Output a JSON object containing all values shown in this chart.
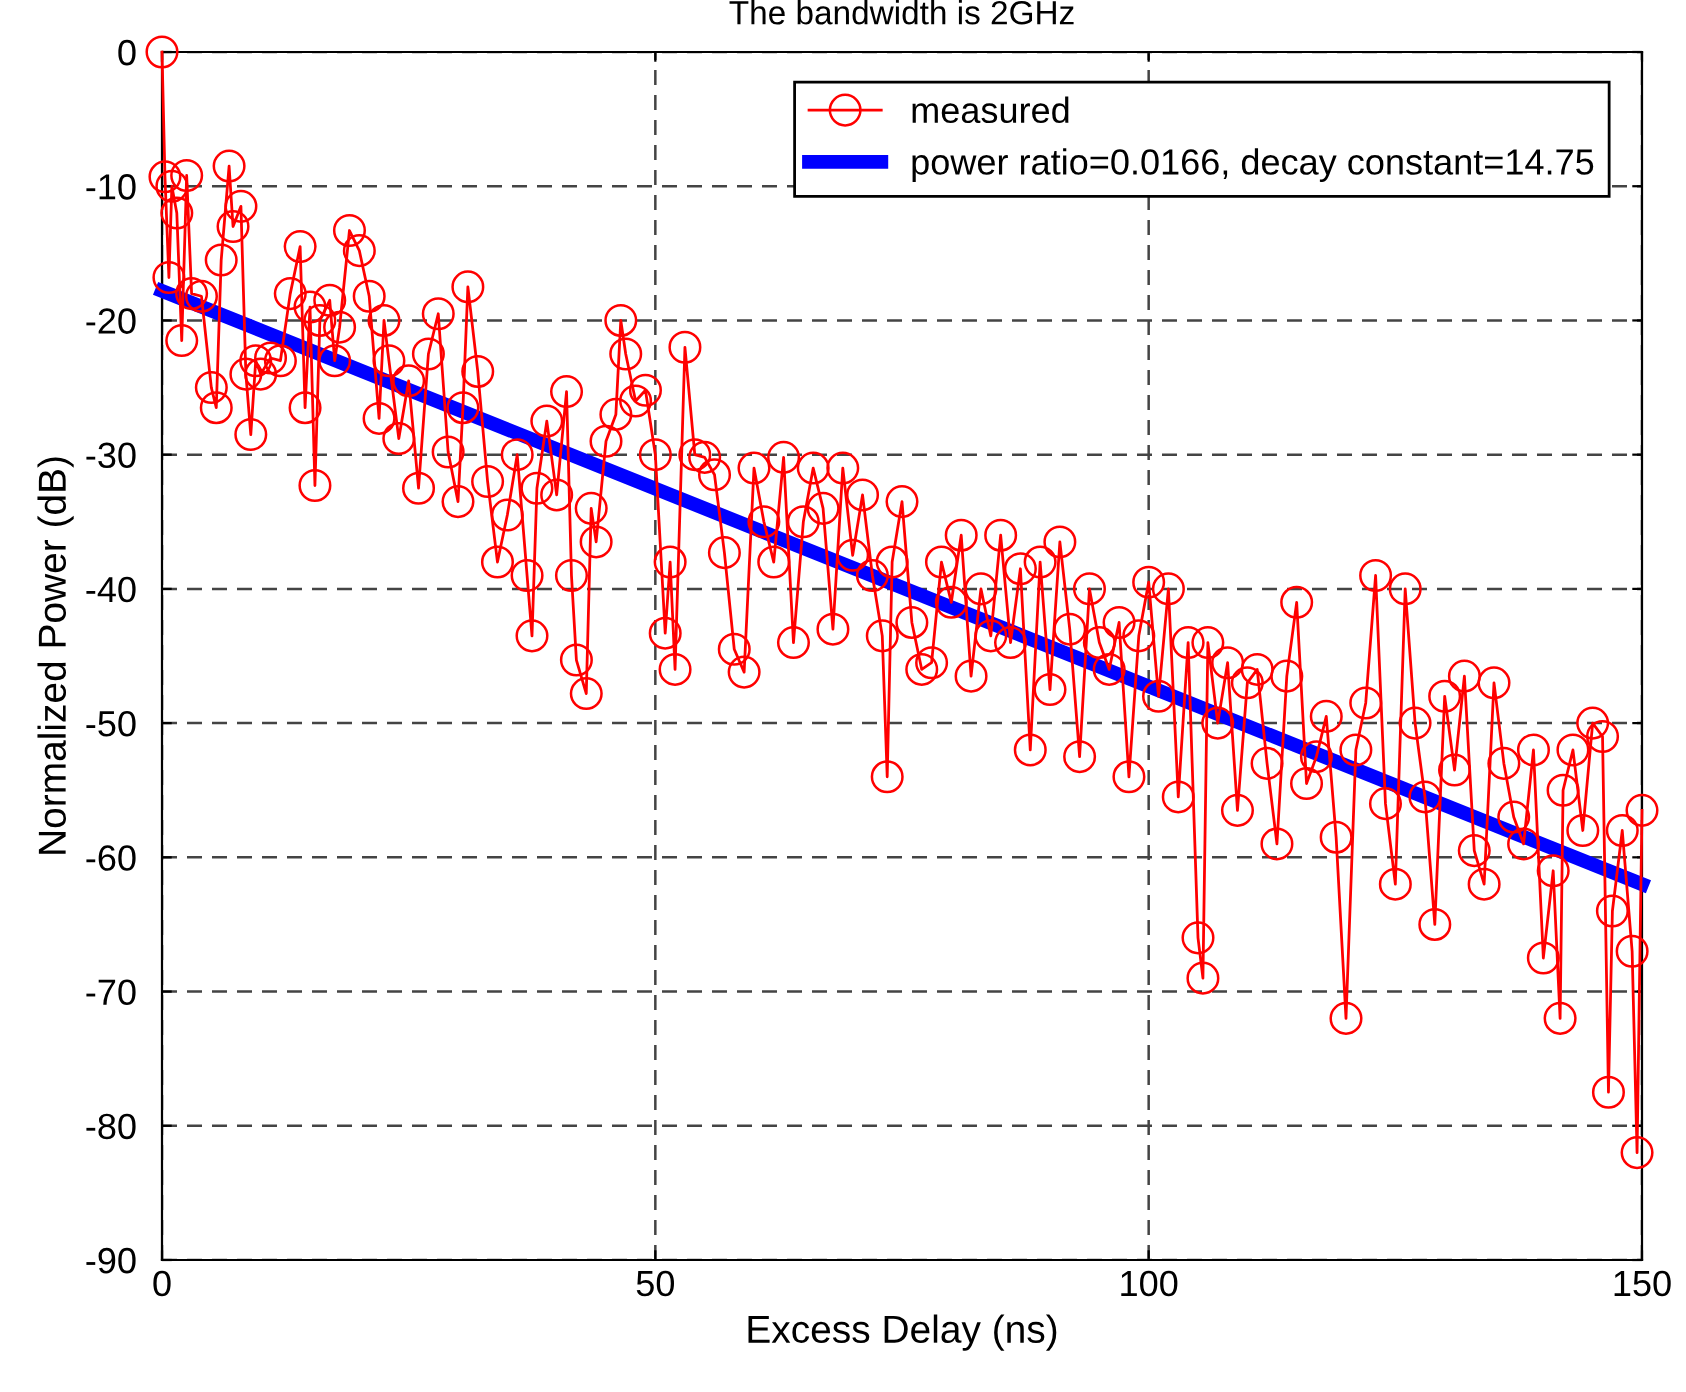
{
  "chart_data": {
    "type": "line",
    "title": "The bandwidth is 2GHz",
    "xlabel": "Excess Delay (ns)",
    "ylabel": "Normalized Power (dB)",
    "xlim": [
      0,
      150
    ],
    "ylim": [
      -90,
      0
    ],
    "xticks": [
      0,
      50,
      100,
      150
    ],
    "yticks": [
      -90,
      -80,
      -70,
      -60,
      -50,
      -40,
      -30,
      -20,
      -10,
      0
    ],
    "grid": true,
    "legend": "top right",
    "series": [
      {
        "name": "measured",
        "color": "#ff0000",
        "marker": "circle",
        "line_style": "solid",
        "x": [
          0,
          0.3,
          0.7,
          1,
          1.5,
          2,
          2.5,
          3,
          4,
          5,
          5.5,
          6,
          6.8,
          7.2,
          8,
          8.5,
          9,
          9.5,
          10,
          11,
          12,
          13,
          14,
          14.5,
          15,
          15.5,
          16,
          17,
          17.5,
          18,
          19,
          20,
          21,
          22,
          22.5,
          23,
          24,
          25,
          26,
          27,
          28,
          29,
          30,
          30.5,
          31,
          32,
          33,
          34,
          35,
          36,
          37,
          37.5,
          38,
          39,
          40,
          41,
          41.5,
          42,
          43,
          43.5,
          44,
          45,
          46,
          46.5,
          47,
          48,
          49,
          50,
          51,
          51.5,
          52,
          53,
          54,
          55,
          56,
          57,
          58,
          59,
          60,
          61,
          62,
          63,
          64,
          65,
          66,
          67,
          68,
          69,
          70,
          71,
          72,
          73,
          73.5,
          74,
          75,
          76,
          77,
          78,
          79,
          80,
          81,
          82,
          83,
          84,
          85,
          86,
          87,
          88,
          89,
          90,
          91,
          92,
          93,
          94,
          95,
          96,
          97,
          98,
          99,
          100,
          101,
          102,
          103,
          104,
          105,
          105.5,
          106,
          107,
          108,
          109,
          110,
          111,
          112,
          113,
          114,
          115,
          116,
          117,
          118,
          119,
          120,
          121,
          122,
          123,
          124,
          125,
          126,
          127,
          128,
          129,
          130,
          131,
          132,
          133,
          134,
          135,
          136,
          137,
          138,
          139,
          140,
          141,
          141.7,
          142,
          143,
          144,
          145,
          146,
          146.6,
          147,
          148,
          149,
          149.5,
          150
        ],
        "values": [
          0,
          -9.3,
          -16.8,
          -10,
          -12,
          -21.5,
          -9.2,
          -18,
          -18.2,
          -25,
          -26.5,
          -15.5,
          -8.5,
          -13,
          -11.5,
          -24,
          -28.5,
          -23,
          -24,
          -22.8,
          -23,
          -18,
          -14.5,
          -26.5,
          -19,
          -32.3,
          -20,
          -18.5,
          -23,
          -20.5,
          -13.3,
          -14.8,
          -18.2,
          -27.3,
          -20,
          -23,
          -28.8,
          -24.5,
          -32.5,
          -22.5,
          -19.5,
          -29.8,
          -33.5,
          -26.5,
          -17.5,
          -23.8,
          -32,
          -38,
          -34.5,
          -30,
          -39,
          -43.5,
          -32.5,
          -27.5,
          -33,
          -25.3,
          -39,
          -45.3,
          -47.8,
          -34,
          -36.5,
          -29,
          -27,
          -20,
          -22.5,
          -26,
          -25.2,
          -30,
          -43.3,
          -38,
          -46,
          -22,
          -30,
          -30.2,
          -31.5,
          -37.3,
          -44.5,
          -46.2,
          -31,
          -35,
          -38,
          -30.2,
          -44,
          -35,
          -31,
          -34,
          -43,
          -31,
          -37.5,
          -33,
          -39,
          -43.5,
          -54,
          -38,
          -33.5,
          -42.5,
          -46,
          -45.5,
          -38,
          -41,
          -36,
          -46.5,
          -40,
          -43.5,
          -36,
          -44,
          -38.5,
          -52,
          -38,
          -47.5,
          -36.5,
          -43,
          -52.5,
          -40,
          -44,
          -46,
          -42.5,
          -54,
          -43.5,
          -39.5,
          -48,
          -40,
          -55.5,
          -44,
          -66,
          -69,
          -44,
          -50,
          -45.5,
          -56.5,
          -47,
          -46,
          -53,
          -59,
          -46.5,
          -41,
          -54.5,
          -52.5,
          -49.5,
          -58.5,
          -72,
          -52,
          -48.5,
          -39,
          -56,
          -62,
          -40,
          -50,
          -55.5,
          -65,
          -48,
          -53.5,
          -46.5,
          -59.5,
          -62,
          -47,
          -53,
          -57,
          -59,
          -52,
          -67.5,
          -61,
          -72,
          -55,
          -52,
          -58,
          -50,
          -51,
          -77.5,
          -64,
          -58,
          -67,
          -82,
          -56.5
        ]
      },
      {
        "name": "power ratio=0.0166, decay constant=14.75",
        "color": "#0000ff",
        "marker": "none",
        "line_style": "solid",
        "x": [
          0,
          150
        ],
        "values": [
          -17.8,
          -62
        ]
      }
    ]
  }
}
